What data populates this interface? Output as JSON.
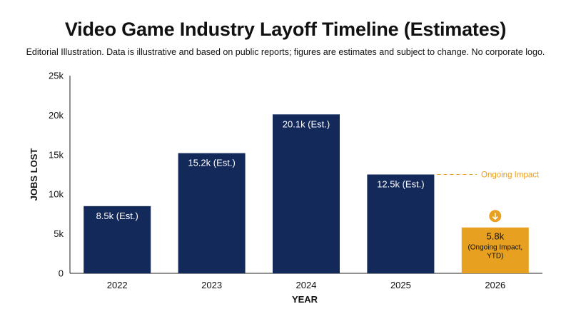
{
  "header": {
    "title": "Video Game Industry Layoff Timeline (Estimates)",
    "subtitle": "Editorial Illustration. Data is illustrative and based on public reports; figures are estimates and subject to change. No corporate logo."
  },
  "colors": {
    "primary_bar": "#13295a",
    "highlight_bar": "#e8a020",
    "axis": "#222222"
  },
  "chart_data": {
    "type": "bar",
    "title": "Video Game Industry Layoff Timeline (Estimates)",
    "xlabel": "YEAR",
    "ylabel": "JOBS LOST",
    "categories": [
      "2022",
      "2023",
      "2024",
      "2025",
      "2026"
    ],
    "values": [
      8.5,
      15.2,
      20.1,
      12.5,
      5.8
    ],
    "value_unit": "thousand jobs",
    "ylim": [
      0,
      25
    ],
    "yticks": [
      0,
      5,
      10,
      15,
      20,
      25
    ],
    "ytick_labels": [
      "0",
      "5k",
      "10k",
      "15k",
      "20k",
      "25k"
    ],
    "grid": false,
    "data_labels": [
      "8.5k (Est.)",
      "15.2k (Est.)",
      "20.1k (Est.)",
      "12.5k (Est.)",
      "5.8k"
    ],
    "data_sublabels": [
      "",
      "",
      "",
      "",
      "(Ongoing Impact, YTD)"
    ],
    "highlight_index": 4,
    "annotation": {
      "text": "Ongoing Impact",
      "from_category": "2025",
      "icon": "down-arrow-circle-icon"
    }
  }
}
